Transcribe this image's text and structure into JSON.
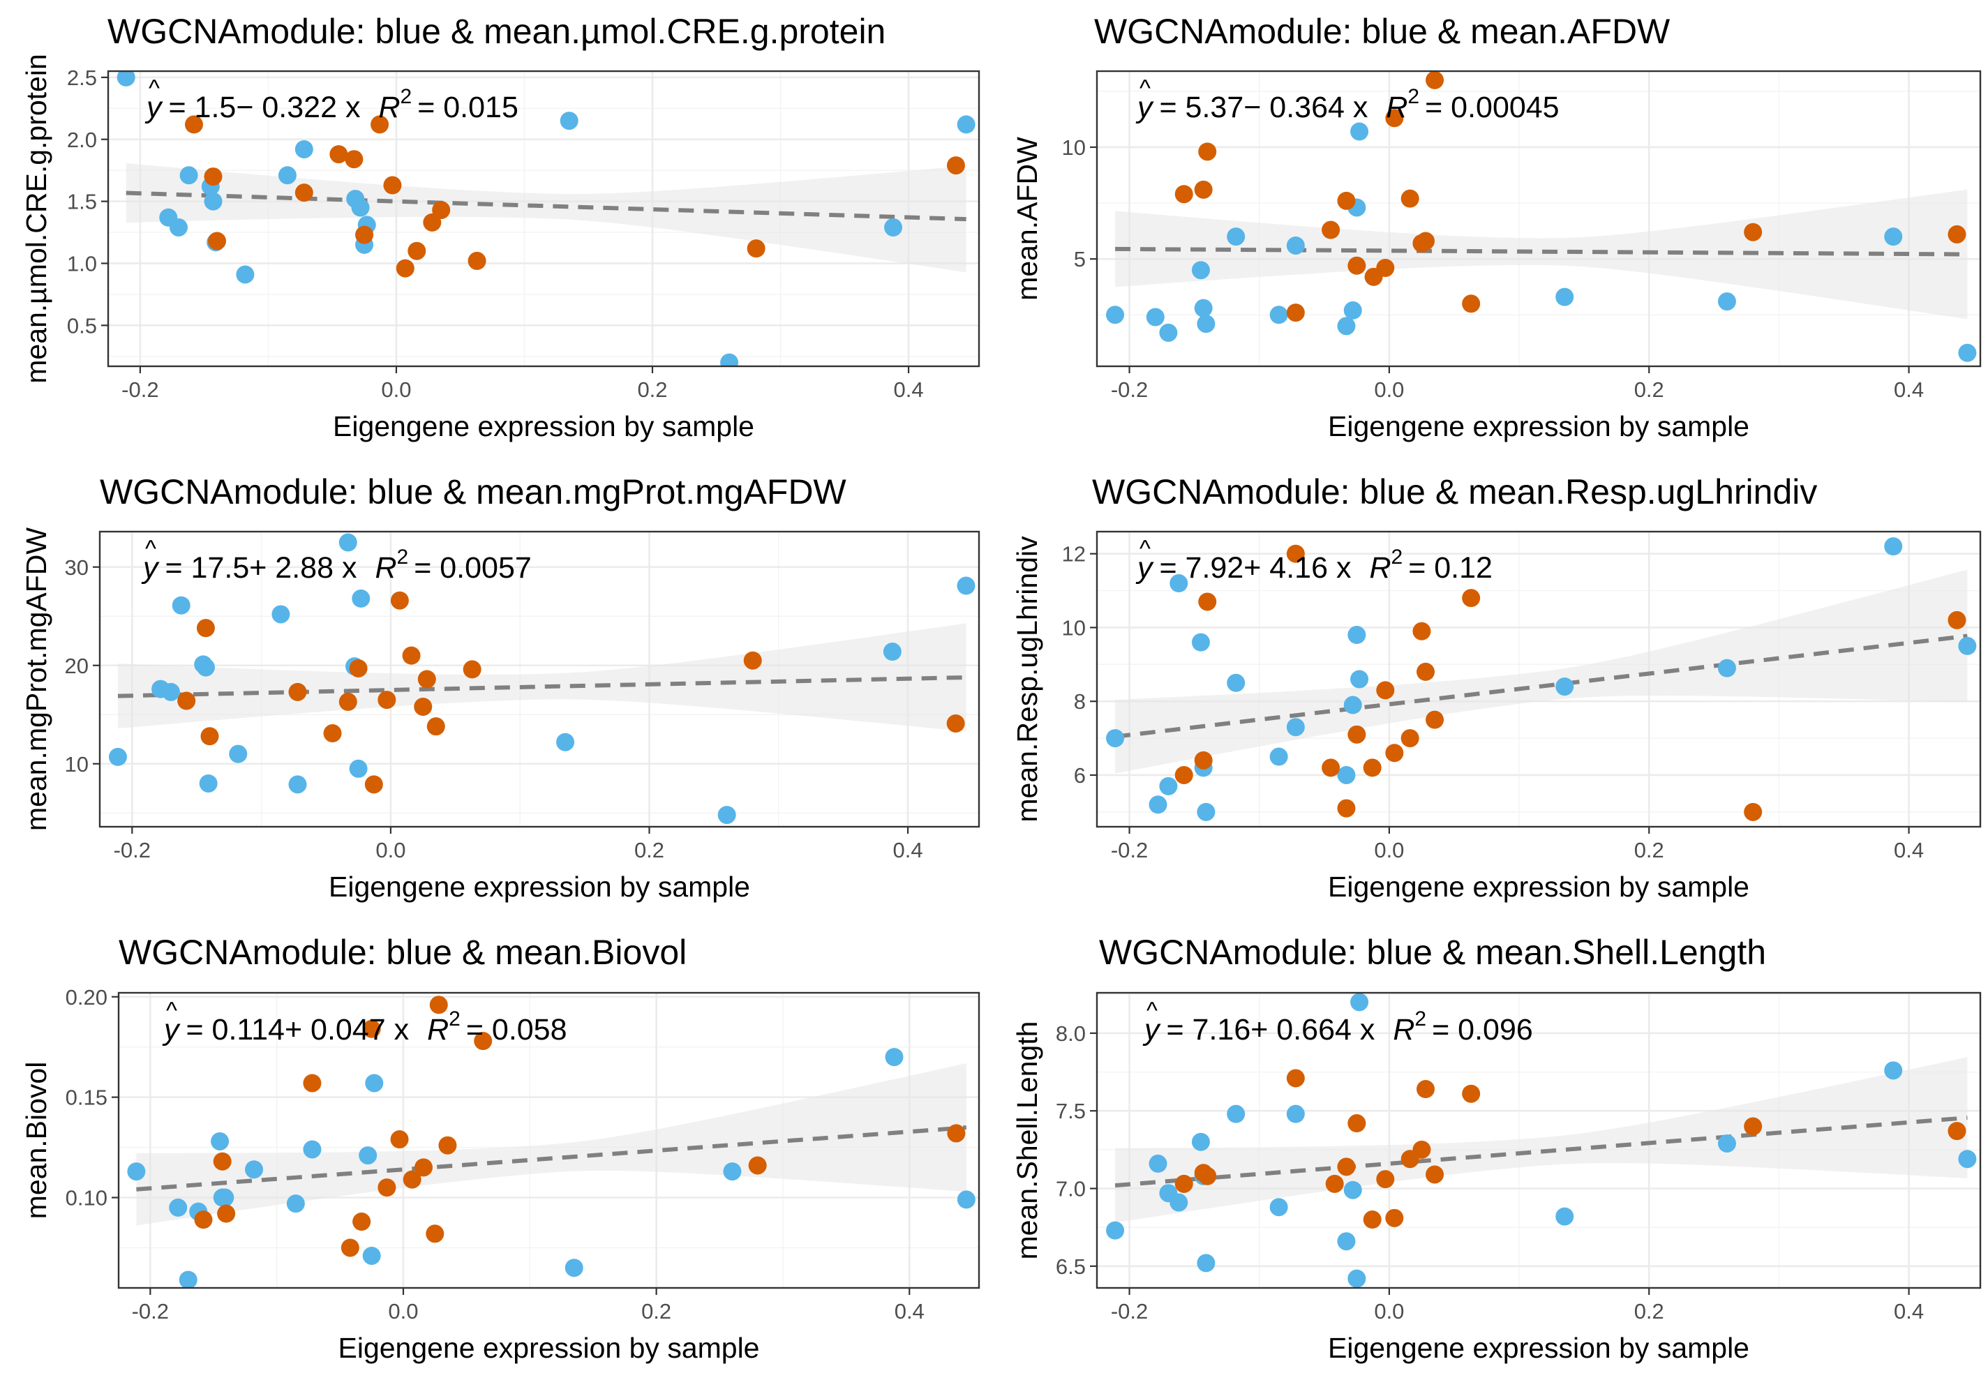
{
  "colors": {
    "module_blue": "#56B4E9",
    "other_orange": "#D55E00",
    "fit_line": "#808080",
    "ribbon": "#e6e6e6"
  },
  "chart_data": [
    {
      "type": "scatter",
      "title": "WGCNAmodule: blue & mean.µmol.CRE.g.protein",
      "xlabel": "Eigengene expression by sample",
      "ylabel": "mean.µmol.CRE.g.protein",
      "xlim": [
        -0.225,
        0.455
      ],
      "ylim": [
        0.17,
        2.55
      ],
      "xticks": [
        "-0.2",
        "0.0",
        "0.2",
        "0.4"
      ],
      "xtick_values": [
        -0.2,
        0.0,
        0.2,
        0.4
      ],
      "yticks": [
        "0.5",
        "1.0",
        "1.5",
        "2.0",
        "2.5"
      ],
      "ytick_values": [
        0.5,
        1.0,
        1.5,
        2.0,
        2.5
      ],
      "grid": true,
      "equation": {
        "yhat": "y",
        "body": "= 1.5− 0.322 x",
        "r2_label": "R",
        "r2_value": "= 0.015"
      },
      "fit": {
        "intercept": 1.5,
        "slope": -0.322,
        "ci_at_xmin": 0.24,
        "ci_mid": 0.1,
        "ci_at_xmax": 0.43
      },
      "series": [
        {
          "color": "#56B4E9",
          "x": [
            -0.211,
            -0.178,
            -0.17,
            -0.162,
            -0.145,
            -0.143,
            -0.141,
            -0.118,
            -0.085,
            -0.072,
            -0.032,
            -0.028,
            -0.025,
            -0.023,
            0.135,
            0.26,
            0.388,
            0.445
          ],
          "y": [
            2.5,
            1.37,
            1.29,
            1.71,
            1.62,
            1.5,
            1.17,
            0.91,
            1.71,
            1.92,
            1.52,
            1.45,
            1.15,
            1.31,
            2.15,
            0.2,
            1.29,
            2.12
          ]
        },
        {
          "color": "#D55E00",
          "x": [
            -0.158,
            -0.143,
            -0.14,
            -0.072,
            -0.045,
            -0.033,
            -0.025,
            -0.013,
            -0.003,
            0.007,
            0.016,
            0.028,
            0.035,
            0.063,
            0.281,
            0.437
          ],
          "y": [
            2.12,
            1.7,
            1.18,
            1.57,
            1.88,
            1.84,
            1.23,
            2.12,
            1.63,
            0.96,
            1.1,
            1.33,
            1.43,
            1.02,
            1.12,
            1.79
          ]
        }
      ]
    },
    {
      "type": "scatter",
      "title": "WGCNAmodule: blue & mean.AFDW",
      "xlabel": "Eigengene expression by sample",
      "ylabel": "mean.AFDW",
      "xlim": [
        -0.225,
        0.455
      ],
      "ylim": [
        0.2,
        13.4
      ],
      "xticks": [
        "-0.2",
        "0.0",
        "0.2",
        "0.4"
      ],
      "xtick_values": [
        -0.2,
        0.0,
        0.2,
        0.4
      ],
      "yticks": [
        "5",
        "10"
      ],
      "ytick_values": [
        5,
        10
      ],
      "grid": true,
      "equation": {
        "yhat": "y",
        "body": "= 5.37− 0.364 x",
        "r2_label": "R",
        "r2_value": "= 0.00045"
      },
      "fit": {
        "intercept": 5.37,
        "slope": -0.364,
        "ci_at_xmin": 1.7,
        "ci_mid": 0.6,
        "ci_at_xmax": 2.9
      },
      "series": [
        {
          "color": "#56B4E9",
          "x": [
            -0.211,
            -0.18,
            -0.17,
            -0.145,
            -0.143,
            -0.141,
            -0.118,
            -0.085,
            -0.072,
            -0.033,
            -0.028,
            -0.025,
            -0.023,
            0.135,
            0.26,
            0.388,
            0.445
          ],
          "y": [
            2.5,
            2.4,
            1.7,
            4.5,
            2.8,
            2.1,
            6.0,
            2.5,
            5.6,
            2.0,
            2.7,
            7.3,
            10.7,
            3.3,
            3.1,
            6.0,
            0.8
          ]
        },
        {
          "color": "#D55E00",
          "x": [
            -0.158,
            -0.143,
            -0.14,
            -0.072,
            -0.045,
            -0.033,
            -0.025,
            -0.012,
            -0.003,
            0.004,
            0.016,
            0.025,
            0.028,
            0.035,
            0.063,
            0.28,
            0.437
          ],
          "y": [
            7.9,
            8.1,
            9.8,
            2.6,
            6.3,
            7.6,
            4.7,
            4.2,
            4.6,
            11.3,
            7.7,
            5.7,
            5.8,
            13.0,
            3.0,
            6.2,
            6.1
          ]
        }
      ]
    },
    {
      "type": "scatter",
      "title": "WGCNAmodule: blue & mean.mgProt.mgAFDW",
      "xlabel": "Eigengene expression by sample",
      "ylabel": "mean.mgProt.mgAFDW",
      "xlim": [
        -0.225,
        0.455
      ],
      "ylim": [
        3.6,
        33.6
      ],
      "xticks": [
        "-0.2",
        "0.0",
        "0.2",
        "0.4"
      ],
      "xtick_values": [
        -0.2,
        0.0,
        0.2,
        0.4
      ],
      "yticks": [
        "10",
        "20",
        "30"
      ],
      "ytick_values": [
        10,
        20,
        30
      ],
      "grid": true,
      "equation": {
        "yhat": "y",
        "body": "= 17.5+ 2.88 x",
        "r2_label": "R",
        "r2_value": "= 0.0057"
      },
      "fit": {
        "intercept": 17.5,
        "slope": 2.88,
        "ci_at_xmin": 3.3,
        "ci_mid": 1.3,
        "ci_at_xmax": 5.5
      },
      "series": [
        {
          "color": "#56B4E9",
          "x": [
            -0.211,
            -0.178,
            -0.17,
            -0.162,
            -0.145,
            -0.143,
            -0.141,
            -0.118,
            -0.085,
            -0.072,
            -0.033,
            -0.028,
            -0.025,
            -0.023,
            0.135,
            0.26,
            0.388,
            0.445
          ],
          "y": [
            10.7,
            17.6,
            17.3,
            26.1,
            20.1,
            19.8,
            8.0,
            11.0,
            25.2,
            7.9,
            32.5,
            19.9,
            9.5,
            26.8,
            12.2,
            4.8,
            21.4,
            28.1
          ]
        },
        {
          "color": "#D55E00",
          "x": [
            -0.158,
            -0.143,
            -0.14,
            -0.072,
            -0.045,
            -0.033,
            -0.025,
            -0.013,
            -0.003,
            0.007,
            0.016,
            0.025,
            0.028,
            0.035,
            0.063,
            0.28,
            0.437
          ],
          "y": [
            16.4,
            23.8,
            12.8,
            17.3,
            13.1,
            16.3,
            19.7,
            7.9,
            16.5,
            26.6,
            21.0,
            15.8,
            18.6,
            13.8,
            19.6,
            20.5,
            14.1
          ]
        }
      ]
    },
    {
      "type": "scatter",
      "title": "WGCNAmodule: blue & mean.Resp.ugLhrindiv",
      "xlabel": "Eigengene expression by sample",
      "ylabel": "mean.Resp.ugLhrindiv",
      "xlim": [
        -0.225,
        0.455
      ],
      "ylim": [
        4.6,
        12.6
      ],
      "xticks": [
        "-0.2",
        "0.0",
        "0.2",
        "0.4"
      ],
      "xtick_values": [
        -0.2,
        0.0,
        0.2,
        0.4
      ],
      "yticks": [
        "6",
        "8",
        "10",
        "12"
      ],
      "ytick_values": [
        6,
        8,
        10,
        12
      ],
      "grid": true,
      "equation": {
        "yhat": "y",
        "body": "= 7.92+ 4.16 x",
        "r2_label": "R",
        "r2_value": "= 0.12"
      },
      "fit": {
        "intercept": 7.92,
        "slope": 4.16,
        "ci_at_xmin": 1.0,
        "ci_mid": 0.4,
        "ci_at_xmax": 1.8
      },
      "series": [
        {
          "color": "#56B4E9",
          "x": [
            -0.211,
            -0.178,
            -0.17,
            -0.162,
            -0.145,
            -0.143,
            -0.141,
            -0.118,
            -0.085,
            -0.072,
            -0.033,
            -0.028,
            -0.025,
            -0.023,
            0.135,
            0.26,
            0.388,
            0.445
          ],
          "y": [
            7.0,
            5.2,
            5.7,
            11.2,
            9.6,
            6.2,
            5.0,
            8.5,
            6.5,
            7.3,
            6.0,
            7.9,
            9.8,
            8.6,
            8.4,
            8.9,
            12.2,
            9.5
          ]
        },
        {
          "color": "#D55E00",
          "x": [
            -0.158,
            -0.143,
            -0.14,
            -0.072,
            -0.045,
            -0.033,
            -0.025,
            -0.013,
            -0.003,
            0.004,
            0.016,
            0.025,
            0.028,
            0.035,
            0.063,
            0.28,
            0.437
          ],
          "y": [
            6.0,
            6.4,
            10.7,
            12.0,
            6.2,
            5.1,
            7.1,
            6.2,
            8.3,
            6.6,
            7.0,
            9.9,
            8.8,
            7.5,
            10.8,
            5.0,
            10.2
          ]
        }
      ]
    },
    {
      "type": "scatter",
      "title": "WGCNAmodule: blue & mean.Biovol",
      "xlabel": "Eigengene expression by sample",
      "ylabel": "mean.Biovol",
      "xlim": [
        -0.225,
        0.455
      ],
      "ylim": [
        0.055,
        0.202
      ],
      "xticks": [
        "-0.2",
        "0.0",
        "0.2",
        "0.4"
      ],
      "xtick_values": [
        -0.2,
        0.0,
        0.2,
        0.4
      ],
      "yticks": [
        "0.10",
        "0.15",
        "0.20"
      ],
      "ytick_values": [
        0.1,
        0.15,
        0.2
      ],
      "grid": true,
      "equation": {
        "yhat": "y",
        "body": "= 0.114+ 0.047 x",
        "r2_label": "R",
        "r2_value": "= 0.058"
      },
      "fit": {
        "intercept": 0.114,
        "slope": 0.047,
        "ci_at_xmin": 0.018,
        "ci_mid": 0.007,
        "ci_at_xmax": 0.032
      },
      "series": [
        {
          "color": "#56B4E9",
          "x": [
            -0.211,
            -0.178,
            -0.17,
            -0.162,
            -0.145,
            -0.143,
            -0.141,
            -0.118,
            -0.085,
            -0.072,
            -0.033,
            -0.028,
            -0.025,
            -0.023,
            0.135,
            0.26,
            0.388,
            0.445
          ],
          "y": [
            0.113,
            0.095,
            0.059,
            0.093,
            0.128,
            0.1,
            0.1,
            0.114,
            0.097,
            0.124,
            0.088,
            0.121,
            0.071,
            0.157,
            0.065,
            0.113,
            0.17,
            0.099
          ]
        },
        {
          "color": "#D55E00",
          "x": [
            -0.158,
            -0.143,
            -0.14,
            -0.072,
            -0.042,
            -0.033,
            -0.025,
            -0.013,
            -0.003,
            0.007,
            0.016,
            0.025,
            0.028,
            0.035,
            0.063,
            0.28,
            0.437
          ],
          "y": [
            0.089,
            0.118,
            0.092,
            0.157,
            0.075,
            0.088,
            0.184,
            0.105,
            0.129,
            0.109,
            0.115,
            0.082,
            0.196,
            0.126,
            0.178,
            0.116,
            0.132
          ]
        }
      ]
    },
    {
      "type": "scatter",
      "title": "WGCNAmodule: blue & mean.Shell.Length",
      "xlabel": "Eigengene expression by sample",
      "ylabel": "mean.Shell.Length",
      "xlim": [
        -0.225,
        0.455
      ],
      "ylim": [
        6.36,
        8.26
      ],
      "xticks": [
        "-0.2",
        "0.0",
        "0.2",
        "0.4"
      ],
      "xtick_values": [
        -0.2,
        0.0,
        0.2,
        0.4
      ],
      "yticks": [
        "6.5",
        "7.0",
        "7.5",
        "8.0"
      ],
      "ytick_values": [
        6.5,
        7.0,
        7.5,
        8.0
      ],
      "grid": true,
      "equation": {
        "yhat": "y",
        "body": "= 7.16+ 0.664 x",
        "r2_label": "R",
        "r2_value": "= 0.096"
      },
      "fit": {
        "intercept": 7.16,
        "slope": 0.664,
        "ci_at_xmin": 0.24,
        "ci_mid": 0.09,
        "ci_at_xmax": 0.39
      },
      "series": [
        {
          "color": "#56B4E9",
          "x": [
            -0.211,
            -0.178,
            -0.17,
            -0.162,
            -0.145,
            -0.143,
            -0.141,
            -0.118,
            -0.085,
            -0.072,
            -0.033,
            -0.028,
            -0.025,
            -0.023,
            0.135,
            0.26,
            0.388,
            0.445
          ],
          "y": [
            6.73,
            7.16,
            6.97,
            6.91,
            7.3,
            7.08,
            6.52,
            7.48,
            6.88,
            7.48,
            6.66,
            6.99,
            6.42,
            8.2,
            6.82,
            7.29,
            7.76,
            7.19
          ]
        },
        {
          "color": "#D55E00",
          "x": [
            -0.158,
            -0.143,
            -0.14,
            -0.072,
            -0.042,
            -0.033,
            -0.025,
            -0.013,
            -0.003,
            0.004,
            0.016,
            0.025,
            0.028,
            0.035,
            0.063,
            0.28,
            0.437
          ],
          "y": [
            7.03,
            7.1,
            7.08,
            7.71,
            7.03,
            7.14,
            7.42,
            6.8,
            7.06,
            6.81,
            7.19,
            7.25,
            7.64,
            7.09,
            7.61,
            7.4,
            7.37
          ]
        }
      ]
    }
  ]
}
